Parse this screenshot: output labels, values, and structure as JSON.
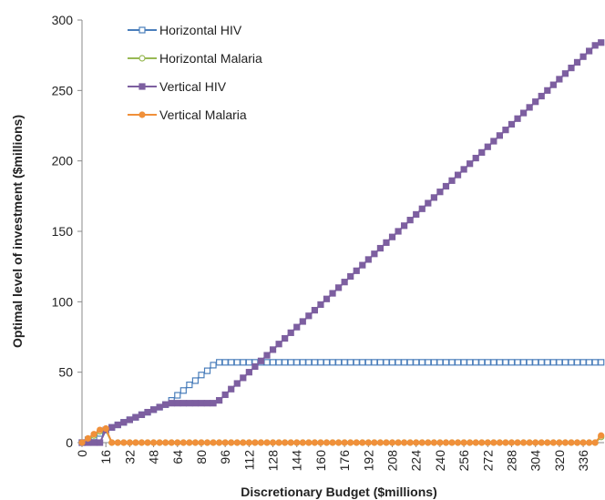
{
  "chart_data": {
    "type": "line",
    "x_label": "Discretionary  Budget ($millions)",
    "y_label": "Optimal level of investment ($millions)",
    "x": [
      0,
      4,
      8,
      12,
      16,
      20,
      24,
      28,
      32,
      36,
      40,
      44,
      48,
      52,
      56,
      60,
      64,
      68,
      72,
      76,
      80,
      84,
      88,
      92,
      96,
      100,
      104,
      108,
      112,
      116,
      120,
      124,
      128,
      132,
      136,
      140,
      144,
      148,
      152,
      156,
      160,
      164,
      168,
      172,
      176,
      180,
      184,
      188,
      192,
      196,
      200,
      204,
      208,
      212,
      216,
      220,
      224,
      228,
      232,
      236,
      240,
      244,
      248,
      252,
      256,
      260,
      264,
      268,
      272,
      276,
      280,
      284,
      288,
      292,
      296,
      300,
      304,
      308,
      312,
      316,
      320,
      324,
      328,
      332,
      336,
      340,
      344,
      348
    ],
    "series": [
      {
        "name": "Horizontal HIV",
        "color": "#4a7ebb",
        "marker": "square-open",
        "values": [
          0,
          2,
          4,
          6.5,
          9,
          10.8,
          12.6,
          14.4,
          16.2,
          18,
          19.8,
          21.6,
          23.4,
          25.2,
          27,
          30,
          33.6,
          37,
          41,
          44,
          48,
          51,
          55,
          57,
          57,
          57,
          57,
          57,
          57,
          57,
          57,
          57,
          57,
          57,
          57,
          57,
          57,
          57,
          57,
          57,
          57,
          57,
          57,
          57,
          57,
          57,
          57,
          57,
          57,
          57,
          57,
          57,
          57,
          57,
          57,
          57,
          57,
          57,
          57,
          57,
          57,
          57,
          57,
          57,
          57,
          57,
          57,
          57,
          57,
          57,
          57,
          57,
          57,
          57,
          57,
          57,
          57,
          57,
          57,
          57,
          57,
          57,
          57,
          57,
          57,
          57,
          57,
          57
        ]
      },
      {
        "name": "Horizontal Malaria",
        "color": "#98b954",
        "marker": "circle-open",
        "values": [
          0,
          2,
          5,
          8,
          9,
          0,
          0,
          0,
          0,
          0,
          0,
          0,
          0,
          0,
          0,
          0,
          0,
          0,
          0,
          0,
          0,
          0,
          0,
          0,
          0,
          0,
          0,
          0,
          0,
          0,
          0,
          0,
          0,
          0,
          0,
          0,
          0,
          0,
          0,
          0,
          0,
          0,
          0,
          0,
          0,
          0,
          0,
          0,
          0,
          0,
          0,
          0,
          0,
          0,
          0,
          0,
          0,
          0,
          0,
          0,
          0,
          0,
          0,
          0,
          0,
          0,
          0,
          0,
          0,
          0,
          0,
          0,
          0,
          0,
          0,
          0,
          0,
          0,
          0,
          0,
          0,
          0,
          0,
          0,
          0,
          0,
          0,
          4
        ]
      },
      {
        "name": "Vertical HIV",
        "color": "#7d5fa0",
        "marker": "square",
        "values": [
          0,
          0,
          0,
          0,
          9,
          10.8,
          12.6,
          14.4,
          16.2,
          18,
          19.8,
          21.6,
          23.4,
          25.2,
          27,
          28,
          28,
          28,
          28,
          28,
          28,
          28,
          28,
          30,
          34,
          38,
          42,
          46,
          50,
          54,
          58,
          62,
          66,
          70,
          74,
          78,
          82,
          86,
          90,
          94,
          98,
          102,
          106,
          110,
          114,
          118,
          122,
          126,
          130,
          134,
          138,
          142,
          146,
          150,
          154,
          158,
          162,
          166,
          170,
          174,
          178,
          182,
          186,
          190,
          194,
          198,
          202,
          206,
          210,
          214,
          218,
          222,
          226,
          230,
          234,
          238,
          242,
          246,
          250,
          254,
          258,
          262,
          266,
          270,
          274,
          278,
          282,
          284
        ]
      },
      {
        "name": "Vertical Malaria",
        "color": "#f0903a",
        "marker": "circle",
        "values": [
          0,
          3,
          6,
          9,
          10,
          0,
          0,
          0,
          0,
          0,
          0,
          0,
          0,
          0,
          0,
          0,
          0,
          0,
          0,
          0,
          0,
          0,
          0,
          0,
          0,
          0,
          0,
          0,
          0,
          0,
          0,
          0,
          0,
          0,
          0,
          0,
          0,
          0,
          0,
          0,
          0,
          0,
          0,
          0,
          0,
          0,
          0,
          0,
          0,
          0,
          0,
          0,
          0,
          0,
          0,
          0,
          0,
          0,
          0,
          0,
          0,
          0,
          0,
          0,
          0,
          0,
          0,
          0,
          0,
          0,
          0,
          0,
          0,
          0,
          0,
          0,
          0,
          0,
          0,
          0,
          0,
          0,
          0,
          0,
          0,
          0,
          0,
          5
        ]
      }
    ],
    "xlim": [
      0,
      350
    ],
    "xticks": [
      0,
      16,
      32,
      48,
      64,
      80,
      96,
      112,
      128,
      144,
      160,
      176,
      192,
      208,
      224,
      240,
      256,
      272,
      288,
      304,
      320,
      336
    ],
    "ylim": [
      0,
      300
    ],
    "yticks": [
      0,
      50,
      100,
      150,
      200,
      250,
      300
    ],
    "grid": false,
    "legend": "upper left"
  }
}
